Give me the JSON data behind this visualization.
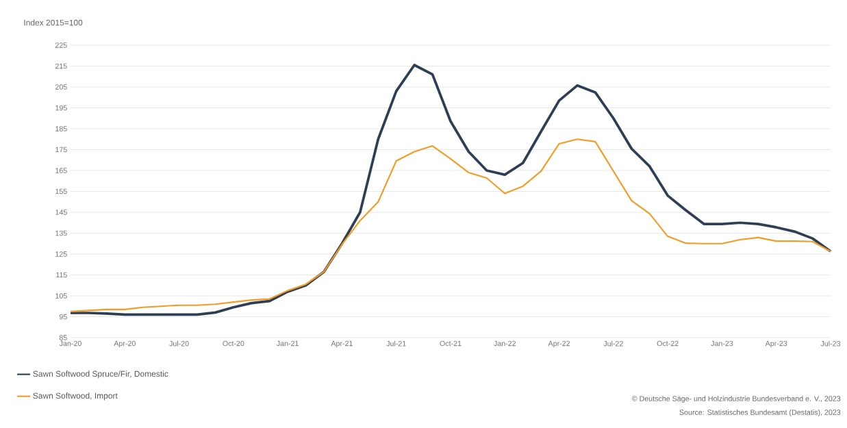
{
  "chart_data": {
    "type": "line",
    "ylabel": "Index 2015=100",
    "x": [
      "2020-01",
      "2020-02",
      "2020-03",
      "2020-04",
      "2020-05",
      "2020-06",
      "2020-07",
      "2020-08",
      "2020-09",
      "2020-10",
      "2020-11",
      "2020-12",
      "2021-01",
      "2021-02",
      "2021-03",
      "2021-04",
      "2021-05",
      "2021-06",
      "2021-07",
      "2021-08",
      "2021-09",
      "2021-10",
      "2021-11",
      "2021-12",
      "2022-01",
      "2022-02",
      "2022-03",
      "2022-04",
      "2022-05",
      "2022-06",
      "2022-07",
      "2022-08",
      "2022-09",
      "2022-10",
      "2022-11",
      "2022-12",
      "2023-01",
      "2023-02",
      "2023-03",
      "2023-04",
      "2023-05",
      "2023-06",
      "2023-07"
    ],
    "series": [
      {
        "name": "Sawn Softwood Spruce/Fir, Domestic",
        "color": "#2e3f55",
        "values": [
          96.8,
          96.8,
          96.5,
          96,
          96,
          96,
          96,
          96,
          97,
          99.5,
          101.5,
          102.5,
          107,
          110,
          116.5,
          130,
          145,
          180,
          203,
          215.5,
          211,
          188.6,
          174,
          165,
          163,
          168.6,
          183.7,
          198.5,
          205.7,
          202.4,
          190,
          175.5,
          167,
          153,
          146,
          139.4,
          139.4,
          140,
          139.4,
          137.8,
          135.8,
          132.5,
          126.3
        ]
      },
      {
        "name": "Sawn Softwood, Import",
        "color": "#f59a23",
        "values": [
          97.5,
          98,
          98.5,
          98.5,
          99.5,
          100,
          100.5,
          100.5,
          101,
          102,
          103,
          103.5,
          107.5,
          110.5,
          116.5,
          129.6,
          141,
          150,
          169.6,
          174,
          176.8,
          170.6,
          164,
          161.4,
          154,
          157.5,
          164.7,
          177.8,
          180,
          178.8,
          164.7,
          150.6,
          144.3,
          133.5,
          130.2,
          130,
          130,
          131.9,
          132.9,
          131.2,
          131.2,
          131,
          126.3
        ]
      }
    ],
    "xlim": [
      "2020-01",
      "2023-07"
    ],
    "xticks": [
      {
        "value": "2020-01",
        "label": "Jan-20"
      },
      {
        "value": "2020-04",
        "label": "Apr-20"
      },
      {
        "value": "2020-07",
        "label": "Jul-20"
      },
      {
        "value": "2020-10",
        "label": "Oct-20"
      },
      {
        "value": "2021-01",
        "label": "Jan-21"
      },
      {
        "value": "2021-04",
        "label": "Apr-21"
      },
      {
        "value": "2021-07",
        "label": "Jul-21"
      },
      {
        "value": "2021-10",
        "label": "Oct-21"
      },
      {
        "value": "2022-01",
        "label": "Jan-22"
      },
      {
        "value": "2022-04",
        "label": "Apr-22"
      },
      {
        "value": "2022-07",
        "label": "Jul-22"
      },
      {
        "value": "2022-10",
        "label": "Oct-22"
      },
      {
        "value": "2023-01",
        "label": "Jan-23"
      },
      {
        "value": "2023-04",
        "label": "Apr-23"
      },
      {
        "value": "2023-07",
        "label": "Jul-23"
      }
    ],
    "ylim": [
      85,
      225
    ],
    "yticks": [
      85,
      95,
      105,
      115,
      125,
      135,
      145,
      155,
      165,
      175,
      185,
      195,
      205,
      215,
      225
    ],
    "grid": "y",
    "legend": "bottom left",
    "line_style": "solid",
    "annotations": [
      "© Deutsche Säge- und Holzindustrie Bundesverband e. V., 2023",
      "Source: Statistisches Bundesamt (Destatis), 2023"
    ]
  }
}
